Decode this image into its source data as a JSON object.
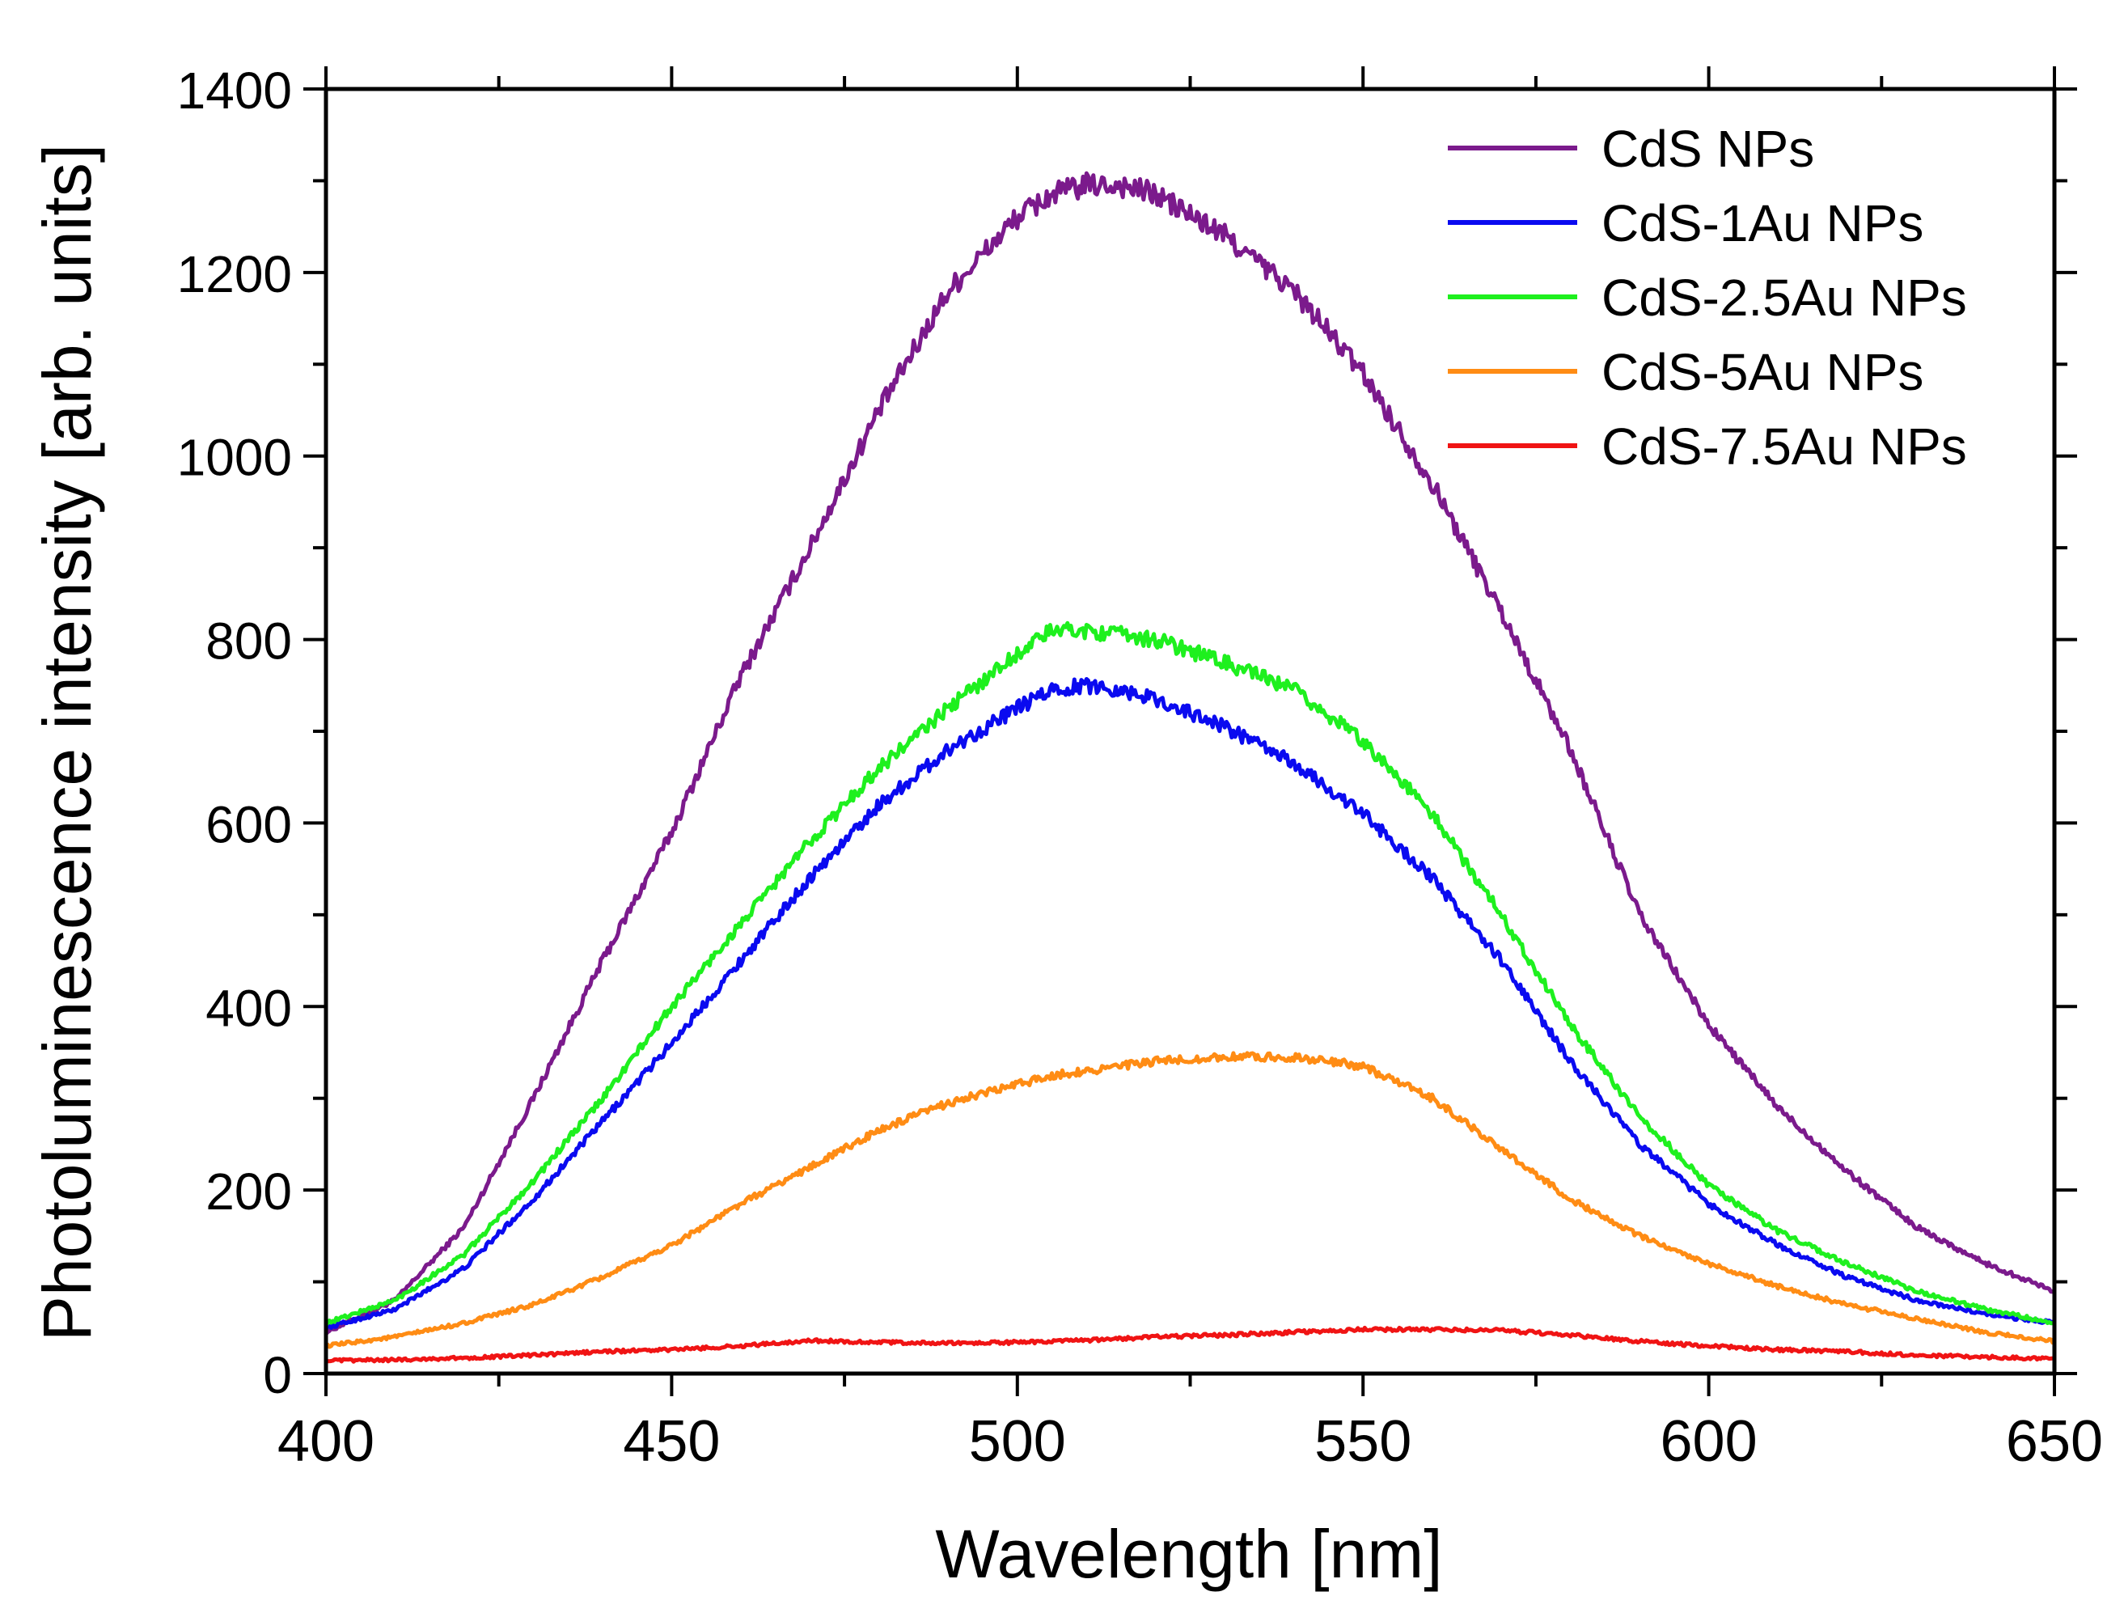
{
  "chart_data": {
    "type": "line",
    "title": "",
    "xlabel": "Wavelength [nm]",
    "ylabel": "Photoluminescence intensity [arb. units]",
    "xlim": [
      400,
      650
    ],
    "ylim": [
      0,
      1400
    ],
    "x_ticks": [
      400,
      450,
      500,
      550,
      600,
      650
    ],
    "y_ticks": [
      0,
      200,
      400,
      600,
      800,
      1000,
      1200,
      1400
    ],
    "grid": false,
    "legend_position": "top-right",
    "x": [
      400,
      410,
      420,
      430,
      440,
      450,
      460,
      470,
      480,
      490,
      500,
      505,
      510,
      515,
      520,
      530,
      540,
      550,
      560,
      570,
      580,
      590,
      600,
      610,
      620,
      630,
      640,
      650
    ],
    "series": [
      {
        "name": "CdS NPs",
        "color": "#7B1A8C",
        "values": [
          45,
          80,
          160,
          300,
          450,
          590,
          760,
          900,
          1050,
          1180,
          1260,
          1285,
          1295,
          1295,
          1285,
          1240,
          1180,
          1090,
          970,
          830,
          680,
          500,
          380,
          290,
          220,
          160,
          120,
          90
        ]
      },
      {
        "name": "CdS-1Au NPs",
        "color": "#0A0AF0",
        "values": [
          50,
          70,
          115,
          190,
          275,
          360,
          450,
          540,
          620,
          680,
          725,
          745,
          750,
          745,
          735,
          705,
          665,
          610,
          540,
          450,
          340,
          250,
          185,
          140,
          105,
          80,
          65,
          55
        ]
      },
      {
        "name": "CdS-2.5Au NPs",
        "color": "#1EF01E",
        "values": [
          55,
          80,
          130,
          210,
          300,
          400,
          490,
          580,
          660,
          725,
          785,
          810,
          810,
          805,
          800,
          775,
          745,
          690,
          610,
          500,
          380,
          280,
          205,
          155,
          120,
          90,
          70,
          55
        ]
      },
      {
        "name": "CdS-5Au NPs",
        "color": "#FF8C14",
        "values": [
          30,
          40,
          55,
          75,
          105,
          140,
          185,
          225,
          265,
          295,
          315,
          325,
          330,
          335,
          340,
          345,
          345,
          335,
          300,
          245,
          190,
          150,
          120,
          95,
          75,
          60,
          45,
          35
        ]
      },
      {
        "name": "CdS-7.5Au NPs",
        "color": "#F01414",
        "values": [
          14,
          15,
          17,
          20,
          24,
          26,
          30,
          36,
          34,
          33,
          34,
          35,
          36,
          38,
          40,
          42,
          45,
          48,
          48,
          47,
          42,
          35,
          30,
          26,
          24,
          20,
          18,
          16
        ]
      }
    ]
  }
}
